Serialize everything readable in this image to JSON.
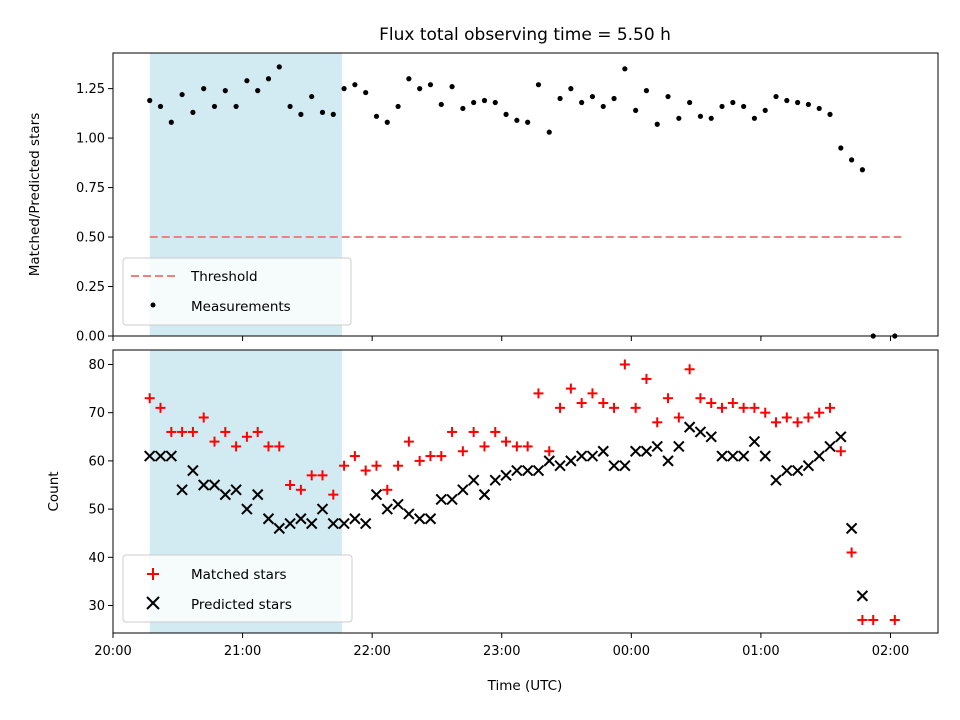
{
  "chart_data": [
    {
      "type": "scatter",
      "title": "Flux total observing time = 5.50 h",
      "xlabel": "",
      "ylabel": "Matched/Predicted stars",
      "ylim": [
        0,
        1.43
      ],
      "yticks": [
        0.0,
        0.25,
        0.5,
        0.75,
        1.0,
        1.25
      ],
      "ytick_labels": [
        "0.00",
        "0.25",
        "0.50",
        "0.75",
        "1.00",
        "1.25"
      ],
      "observing_window": [
        "20:17",
        "21:46"
      ],
      "legend": {
        "placement": "lower-left"
      },
      "threshold": {
        "name": "Threshold",
        "value": 0.5,
        "x_range": [
          "20:17",
          "02:05"
        ],
        "color": "#f08080"
      },
      "series": [
        {
          "name": "Measurements",
          "color": "#000000",
          "marker": "dot",
          "points": [
            [
              "20:17",
              1.19
            ],
            [
              "20:22",
              1.16
            ],
            [
              "20:27",
              1.08
            ],
            [
              "20:32",
              1.22
            ],
            [
              "20:37",
              1.13
            ],
            [
              "20:42",
              1.25
            ],
            [
              "20:47",
              1.16
            ],
            [
              "20:52",
              1.24
            ],
            [
              "20:57",
              1.16
            ],
            [
              "21:02",
              1.29
            ],
            [
              "21:07",
              1.24
            ],
            [
              "21:12",
              1.3
            ],
            [
              "21:17",
              1.36
            ],
            [
              "21:22",
              1.16
            ],
            [
              "21:27",
              1.12
            ],
            [
              "21:32",
              1.21
            ],
            [
              "21:37",
              1.13
            ],
            [
              "21:42",
              1.12
            ],
            [
              "21:47",
              1.25
            ],
            [
              "21:52",
              1.27
            ],
            [
              "21:57",
              1.23
            ],
            [
              "22:02",
              1.11
            ],
            [
              "22:07",
              1.08
            ],
            [
              "22:12",
              1.16
            ],
            [
              "22:17",
              1.3
            ],
            [
              "22:22",
              1.25
            ],
            [
              "22:27",
              1.27
            ],
            [
              "22:32",
              1.17
            ],
            [
              "22:37",
              1.26
            ],
            [
              "22:42",
              1.15
            ],
            [
              "22:47",
              1.18
            ],
            [
              "22:52",
              1.19
            ],
            [
              "22:57",
              1.18
            ],
            [
              "23:02",
              1.12
            ],
            [
              "23:07",
              1.09
            ],
            [
              "23:12",
              1.08
            ],
            [
              "23:17",
              1.27
            ],
            [
              "23:22",
              1.03
            ],
            [
              "23:27",
              1.2
            ],
            [
              "23:32",
              1.25
            ],
            [
              "23:37",
              1.18
            ],
            [
              "23:42",
              1.21
            ],
            [
              "23:47",
              1.16
            ],
            [
              "23:52",
              1.2
            ],
            [
              "23:57",
              1.35
            ],
            [
              "00:02",
              1.14
            ],
            [
              "00:07",
              1.24
            ],
            [
              "00:12",
              1.07
            ],
            [
              "00:17",
              1.21
            ],
            [
              "00:22",
              1.1
            ],
            [
              "00:27",
              1.18
            ],
            [
              "00:32",
              1.11
            ],
            [
              "00:37",
              1.1
            ],
            [
              "00:42",
              1.16
            ],
            [
              "00:47",
              1.18
            ],
            [
              "00:52",
              1.16
            ],
            [
              "00:57",
              1.1
            ],
            [
              "01:02",
              1.14
            ],
            [
              "01:07",
              1.21
            ],
            [
              "01:12",
              1.19
            ],
            [
              "01:17",
              1.18
            ],
            [
              "01:22",
              1.17
            ],
            [
              "01:27",
              1.15
            ],
            [
              "01:32",
              1.12
            ],
            [
              "01:37",
              0.95
            ],
            [
              "01:42",
              0.89
            ],
            [
              "01:47",
              0.84
            ],
            [
              "01:52",
              0.0
            ],
            [
              "02:02",
              0.0
            ]
          ]
        }
      ]
    },
    {
      "type": "scatter",
      "title": "",
      "xlabel": "Time (UTC)",
      "ylabel": "Count",
      "ylim": [
        24.3,
        83
      ],
      "yticks": [
        30,
        40,
        50,
        60,
        70,
        80
      ],
      "ytick_labels": [
        "30",
        "40",
        "50",
        "60",
        "70",
        "80"
      ],
      "xlim": [
        "20:00",
        "02:22"
      ],
      "xticks": [
        "20:00",
        "21:00",
        "22:00",
        "23:00",
        "00:00",
        "01:00",
        "02:00"
      ],
      "observing_window": [
        "20:17",
        "21:46"
      ],
      "legend": {
        "placement": "lower-left"
      },
      "series": [
        {
          "name": "Matched stars",
          "color": "#ff0000",
          "marker": "plus",
          "points": [
            [
              "20:17",
              73
            ],
            [
              "20:22",
              71
            ],
            [
              "20:27",
              66
            ],
            [
              "20:32",
              66
            ],
            [
              "20:37",
              66
            ],
            [
              "20:42",
              69
            ],
            [
              "20:47",
              64
            ],
            [
              "20:52",
              66
            ],
            [
              "20:57",
              63
            ],
            [
              "21:02",
              65
            ],
            [
              "21:07",
              66
            ],
            [
              "21:12",
              63
            ],
            [
              "21:17",
              63
            ],
            [
              "21:22",
              55
            ],
            [
              "21:27",
              54
            ],
            [
              "21:32",
              57
            ],
            [
              "21:37",
              57
            ],
            [
              "21:42",
              53
            ],
            [
              "21:47",
              59
            ],
            [
              "21:52",
              61
            ],
            [
              "21:57",
              58
            ],
            [
              "22:02",
              59
            ],
            [
              "22:07",
              54
            ],
            [
              "22:12",
              59
            ],
            [
              "22:17",
              64
            ],
            [
              "22:22",
              60
            ],
            [
              "22:27",
              61
            ],
            [
              "22:32",
              61
            ],
            [
              "22:37",
              66
            ],
            [
              "22:42",
              62
            ],
            [
              "22:47",
              66
            ],
            [
              "22:52",
              63
            ],
            [
              "22:57",
              66
            ],
            [
              "23:02",
              64
            ],
            [
              "23:07",
              63
            ],
            [
              "23:12",
              63
            ],
            [
              "23:17",
              74
            ],
            [
              "23:22",
              62
            ],
            [
              "23:27",
              71
            ],
            [
              "23:32",
              75
            ],
            [
              "23:37",
              72
            ],
            [
              "23:42",
              74
            ],
            [
              "23:47",
              72
            ],
            [
              "23:52",
              71
            ],
            [
              "23:57",
              80
            ],
            [
              "00:02",
              71
            ],
            [
              "00:07",
              77
            ],
            [
              "00:12",
              68
            ],
            [
              "00:17",
              73
            ],
            [
              "00:22",
              69
            ],
            [
              "00:27",
              79
            ],
            [
              "00:32",
              73
            ],
            [
              "00:37",
              72
            ],
            [
              "00:42",
              71
            ],
            [
              "00:47",
              72
            ],
            [
              "00:52",
              71
            ],
            [
              "00:57",
              71
            ],
            [
              "01:02",
              70
            ],
            [
              "01:07",
              68
            ],
            [
              "01:12",
              69
            ],
            [
              "01:17",
              68
            ],
            [
              "01:22",
              69
            ],
            [
              "01:27",
              70
            ],
            [
              "01:32",
              71
            ],
            [
              "01:37",
              62
            ],
            [
              "01:42",
              41
            ],
            [
              "01:47",
              27
            ],
            [
              "01:52",
              27
            ],
            [
              "02:02",
              27
            ]
          ]
        },
        {
          "name": "Predicted stars",
          "color": "#000000",
          "marker": "x",
          "points": [
            [
              "20:17",
              61
            ],
            [
              "20:22",
              61
            ],
            [
              "20:27",
              61
            ],
            [
              "20:32",
              54
            ],
            [
              "20:37",
              58
            ],
            [
              "20:42",
              55
            ],
            [
              "20:47",
              55
            ],
            [
              "20:52",
              53
            ],
            [
              "20:57",
              54
            ],
            [
              "21:02",
              50
            ],
            [
              "21:07",
              53
            ],
            [
              "21:12",
              48
            ],
            [
              "21:17",
              46
            ],
            [
              "21:22",
              47
            ],
            [
              "21:27",
              48
            ],
            [
              "21:32",
              47
            ],
            [
              "21:37",
              50
            ],
            [
              "21:42",
              47
            ],
            [
              "21:47",
              47
            ],
            [
              "21:52",
              48
            ],
            [
              "21:57",
              47
            ],
            [
              "22:02",
              53
            ],
            [
              "22:07",
              50
            ],
            [
              "22:12",
              51
            ],
            [
              "22:17",
              49
            ],
            [
              "22:22",
              48
            ],
            [
              "22:27",
              48
            ],
            [
              "22:32",
              52
            ],
            [
              "22:37",
              52
            ],
            [
              "22:42",
              54
            ],
            [
              "22:47",
              56
            ],
            [
              "22:52",
              53
            ],
            [
              "22:57",
              56
            ],
            [
              "23:02",
              57
            ],
            [
              "23:07",
              58
            ],
            [
              "23:12",
              58
            ],
            [
              "23:17",
              58
            ],
            [
              "23:22",
              60
            ],
            [
              "23:27",
              59
            ],
            [
              "23:32",
              60
            ],
            [
              "23:37",
              61
            ],
            [
              "23:42",
              61
            ],
            [
              "23:47",
              62
            ],
            [
              "23:52",
              59
            ],
            [
              "23:57",
              59
            ],
            [
              "00:02",
              62
            ],
            [
              "00:07",
              62
            ],
            [
              "00:12",
              63
            ],
            [
              "00:17",
              60
            ],
            [
              "00:22",
              63
            ],
            [
              "00:27",
              67
            ],
            [
              "00:32",
              66
            ],
            [
              "00:37",
              65
            ],
            [
              "00:42",
              61
            ],
            [
              "00:47",
              61
            ],
            [
              "00:52",
              61
            ],
            [
              "00:57",
              64
            ],
            [
              "01:02",
              61
            ],
            [
              "01:07",
              56
            ],
            [
              "01:12",
              58
            ],
            [
              "01:17",
              58
            ],
            [
              "01:22",
              59
            ],
            [
              "01:27",
              61
            ],
            [
              "01:32",
              63
            ],
            [
              "01:37",
              65
            ],
            [
              "01:42",
              46
            ],
            [
              "01:47",
              32
            ]
          ]
        }
      ]
    }
  ],
  "colors": {
    "window_fill": "#add8e6",
    "background": "#ffffff"
  }
}
